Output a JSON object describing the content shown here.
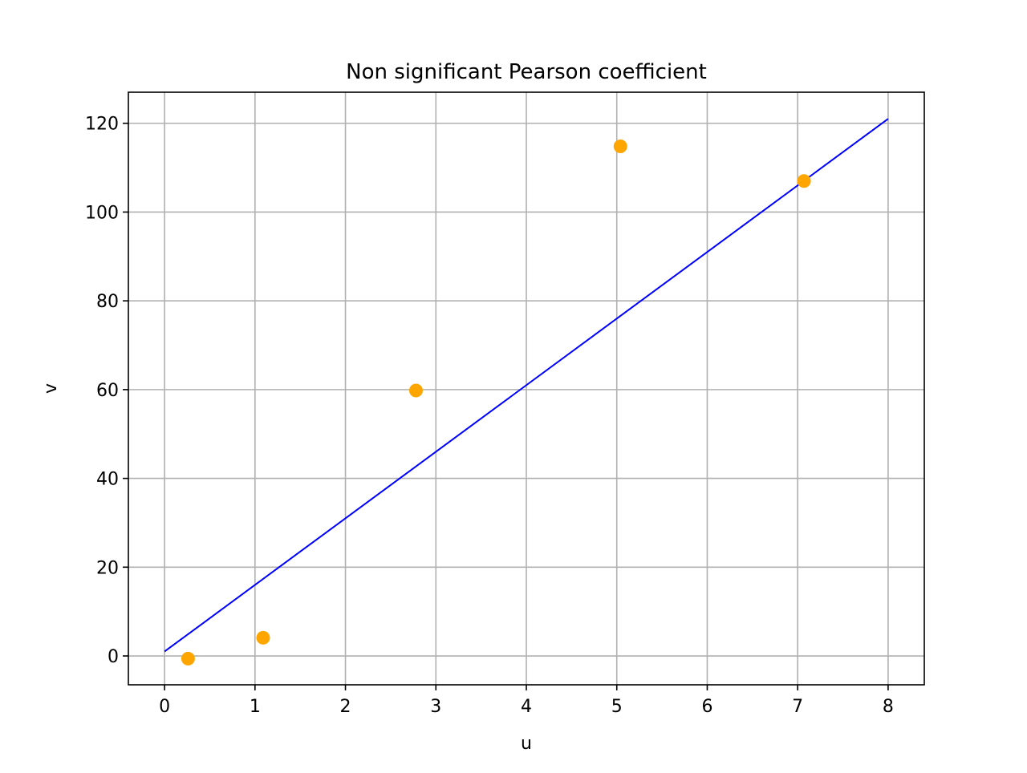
{
  "chart_data": {
    "type": "scatter",
    "title": "Non significant Pearson coefficient",
    "xlabel": "u",
    "ylabel": "v",
    "xlim": [
      -0.4,
      8.4
    ],
    "ylim": [
      -6.5,
      127
    ],
    "xticks": [
      0,
      1,
      2,
      3,
      4,
      5,
      6,
      7,
      8
    ],
    "yticks": [
      0,
      20,
      40,
      60,
      80,
      100,
      120
    ],
    "grid": true,
    "series": [
      {
        "kind": "scatter",
        "color": "#ffa500",
        "points": [
          {
            "x": 0.26,
            "y": -0.6
          },
          {
            "x": 1.09,
            "y": 4.1
          },
          {
            "x": 2.78,
            "y": 59.8
          },
          {
            "x": 5.04,
            "y": 114.8
          },
          {
            "x": 7.07,
            "y": 107.0
          }
        ]
      },
      {
        "kind": "line",
        "color": "#0000ff",
        "points": [
          {
            "x": 0,
            "y": 1.0
          },
          {
            "x": 8,
            "y": 121.0
          }
        ]
      }
    ]
  }
}
